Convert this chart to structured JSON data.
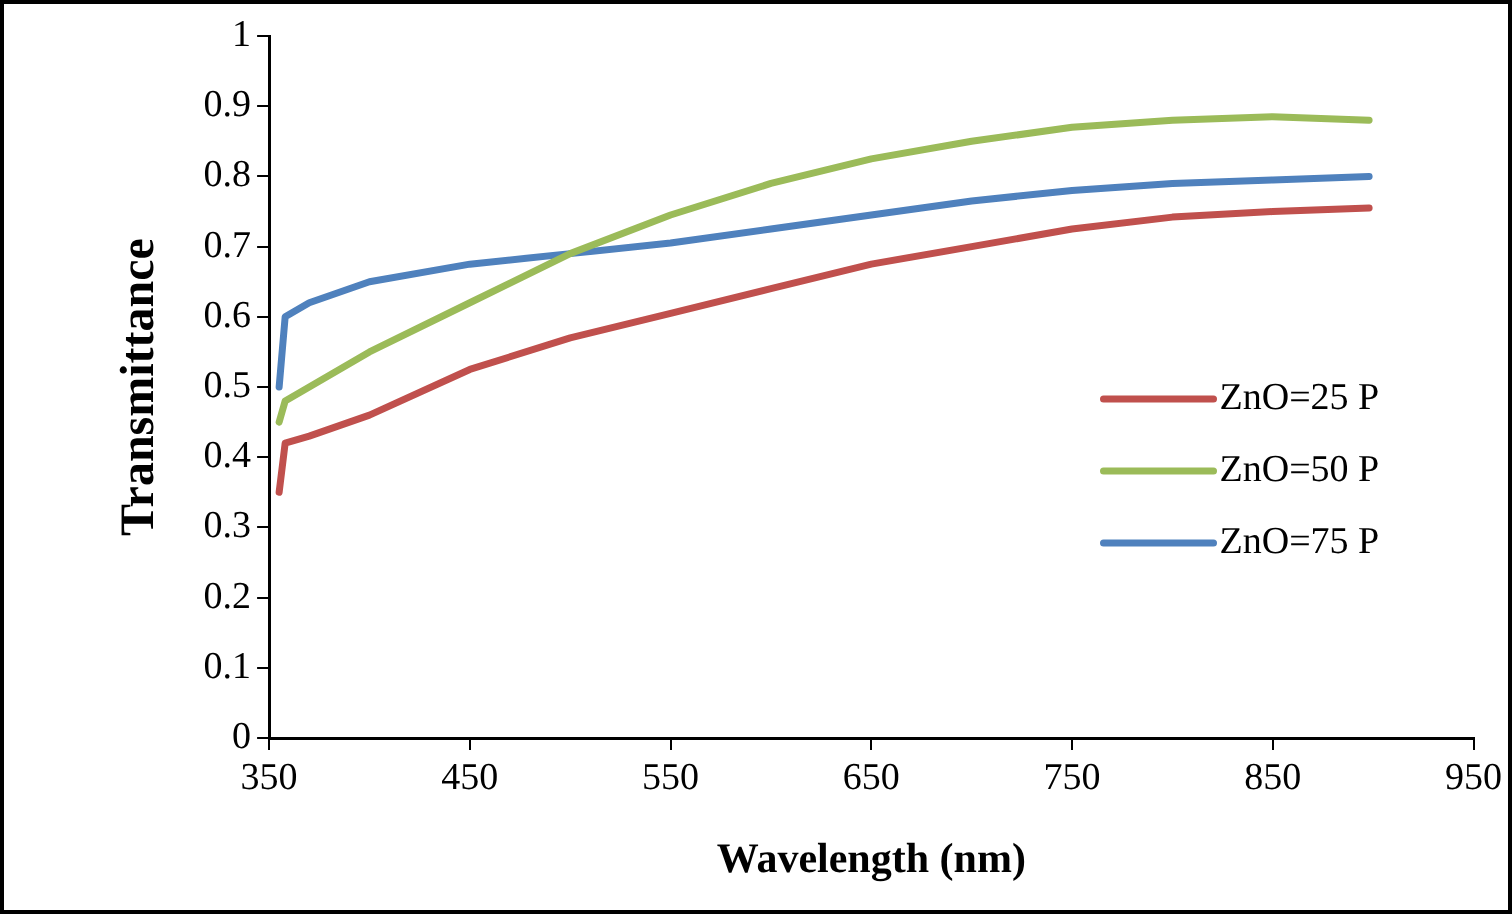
{
  "chart_data": {
    "type": "line",
    "xlabel": "Wavelength (nm)",
    "ylabel": "Transmittance",
    "xlim": [
      350,
      950
    ],
    "xticks": [
      350,
      450,
      550,
      650,
      750,
      850,
      950
    ],
    "ylim": [
      0,
      1
    ],
    "yticks": [
      0,
      {
        "value": 0.1,
        "label": "0.1"
      },
      {
        "value": 0.2,
        "label": "0.2"
      },
      {
        "value": 0.3,
        "label": "0.3"
      },
      {
        "value": 0.4,
        "label": "0.4"
      },
      {
        "value": 0.5,
        "label": "0.5"
      },
      {
        "value": 0.6,
        "label": "0.6"
      },
      {
        "value": 0.7,
        "label": "0.7"
      },
      {
        "value": 0.8,
        "label": "0.8"
      },
      {
        "value": 0.9,
        "label": "0.9"
      },
      1
    ],
    "grid": false,
    "legend": "right",
    "marker": "none",
    "line_style": "solid",
    "x": [
      355,
      358,
      370,
      400,
      450,
      500,
      550,
      600,
      650,
      700,
      750,
      800,
      850,
      898
    ],
    "series": [
      {
        "name": "ZnO=25 P",
        "color": "#c0504d",
        "values": [
          0.35,
          0.42,
          0.43,
          0.46,
          0.525,
          0.57,
          0.605,
          0.64,
          0.675,
          0.7,
          0.725,
          0.742,
          0.75,
          0.755
        ]
      },
      {
        "name": "ZnO=50 P",
        "color": "#9bbb59",
        "values": [
          0.45,
          0.48,
          0.5,
          0.55,
          0.62,
          0.69,
          0.745,
          0.79,
          0.825,
          0.85,
          0.87,
          0.88,
          0.885,
          0.88
        ]
      },
      {
        "name": "ZnO=75 P",
        "color": "#4f81bd",
        "values": [
          0.5,
          0.6,
          0.62,
          0.65,
          0.675,
          0.69,
          0.705,
          0.725,
          0.745,
          0.765,
          0.78,
          0.79,
          0.795,
          0.8
        ]
      }
    ]
  }
}
